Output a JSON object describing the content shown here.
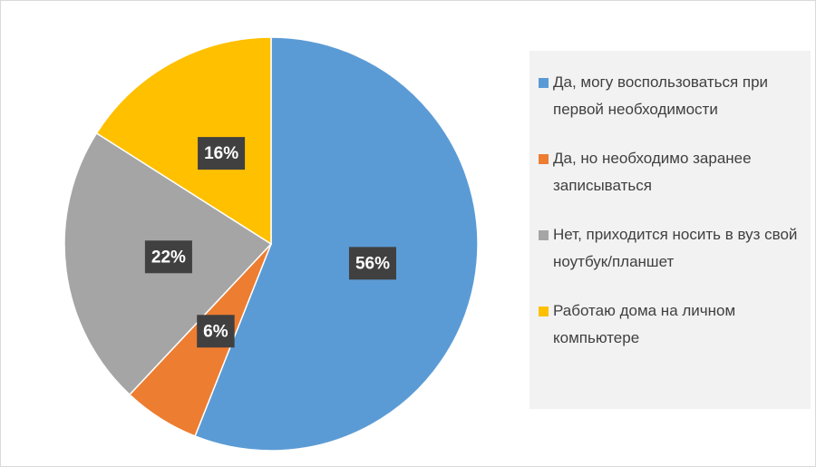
{
  "chart_data": {
    "type": "pie",
    "categories": [
      "Да, могу воспользоваться при первой необходимости",
      "Да, но необходимо заранее записываться",
      "Нет, приходится носить в вуз свой ноутбук/планшет",
      "Работаю дома на личном компьютере"
    ],
    "values": [
      56,
      6,
      22,
      16
    ],
    "value_labels": [
      "56%",
      "6%",
      "22%",
      "16%"
    ],
    "colors": [
      "#5b9bd5",
      "#ed7d31",
      "#a5a5a5",
      "#ffc000"
    ],
    "legend": "right"
  }
}
